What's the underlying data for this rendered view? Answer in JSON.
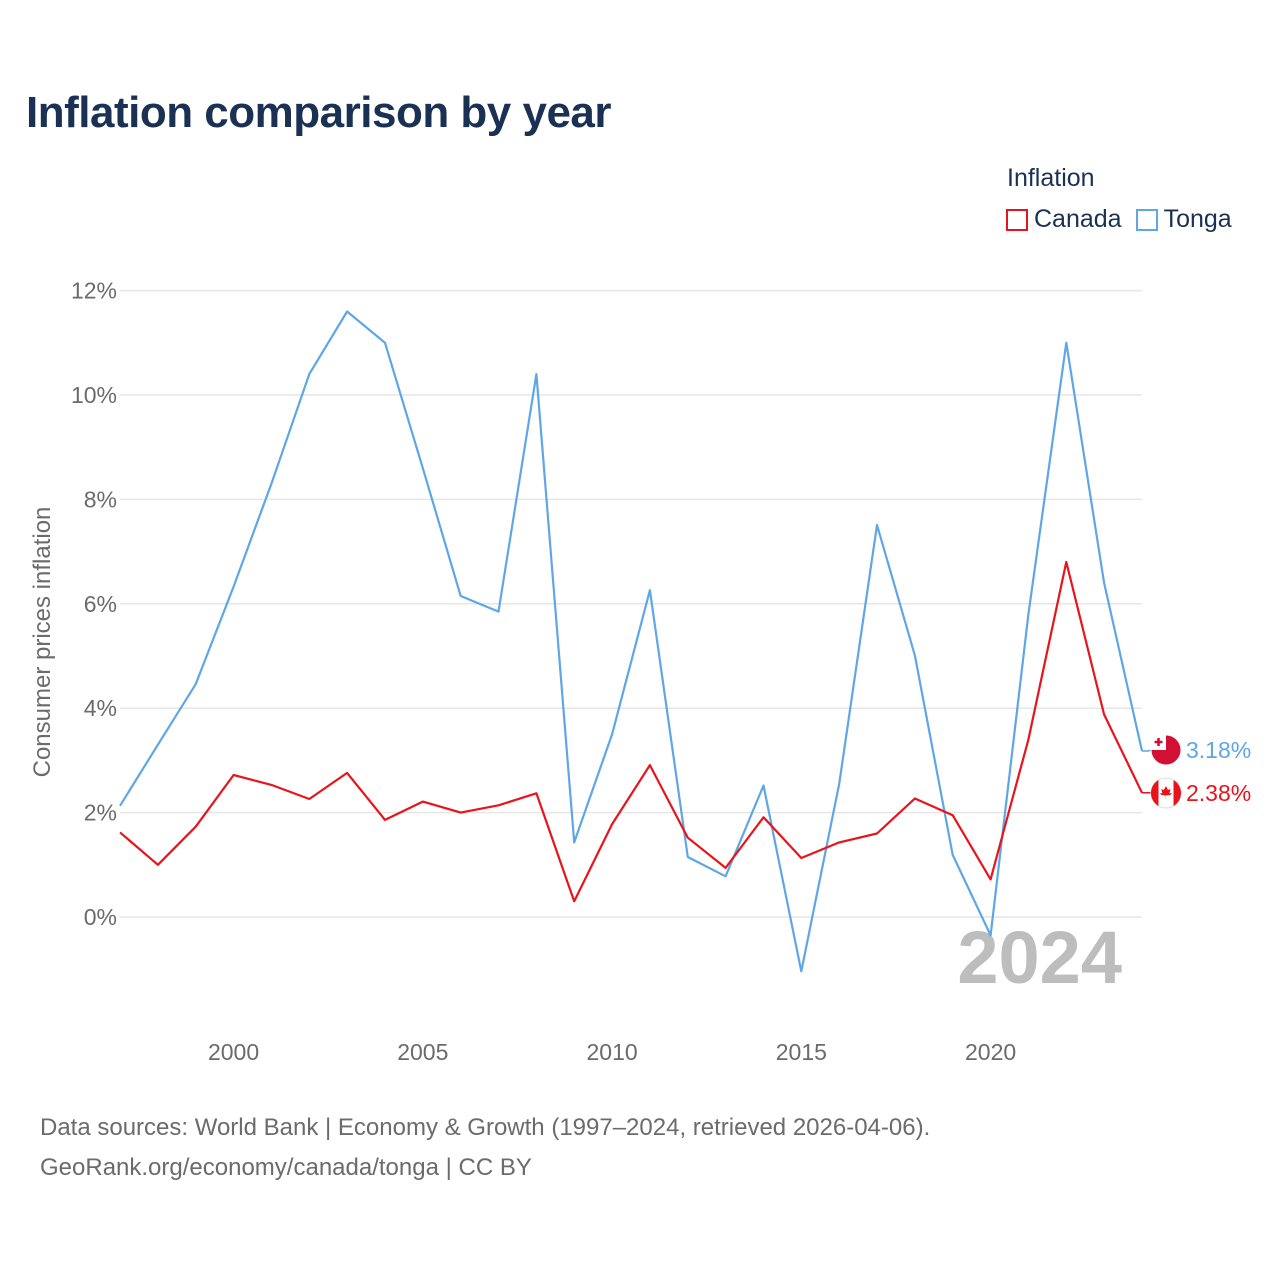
{
  "title": "Inflation comparison by year",
  "legend": {
    "title": "Inflation",
    "items": [
      {
        "name": "Canada",
        "color": "#e8141b"
      },
      {
        "name": "Tonga",
        "color": "#5fa6e6"
      }
    ]
  },
  "source": {
    "line1": "Data sources: World Bank | Economy & Growth (1997–2024, retrieved 2026-04-06).",
    "line2": "GeoRank.org/economy/canada/tonga | CC BY"
  },
  "chart_data": {
    "type": "line",
    "title": "Inflation comparison by year",
    "xlabel": "",
    "ylabel": "Consumer prices inflation",
    "x": [
      1997,
      1998,
      1999,
      2000,
      2001,
      2002,
      2003,
      2004,
      2005,
      2006,
      2007,
      2008,
      2009,
      2010,
      2011,
      2012,
      2013,
      2014,
      2015,
      2016,
      2017,
      2018,
      2019,
      2020,
      2021,
      2022,
      2023,
      2024
    ],
    "xlim": [
      1997,
      2024
    ],
    "ylim": [
      -2,
      12
    ],
    "xticks": [
      2000,
      2005,
      2010,
      2015,
      2020
    ],
    "xtick_labels": [
      "2000",
      "2005",
      "2010",
      "2015",
      "2020"
    ],
    "yticks": [
      0,
      2,
      4,
      6,
      8,
      10,
      12
    ],
    "ytick_labels": [
      "0%",
      "2%",
      "4%",
      "6%",
      "8%",
      "10%",
      "12%"
    ],
    "watermark_year": "2024",
    "series": [
      {
        "name": "Canada",
        "color": "#e8141b",
        "end_label": "2.38%",
        "flag": "canada-flag",
        "values": [
          1.62,
          1.0,
          1.73,
          2.72,
          2.53,
          2.26,
          2.76,
          1.86,
          2.21,
          2.0,
          2.14,
          2.37,
          0.3,
          1.78,
          2.91,
          1.52,
          0.94,
          1.91,
          1.13,
          1.43,
          1.6,
          2.27,
          1.95,
          0.72,
          3.4,
          6.8,
          3.88,
          2.38
        ]
      },
      {
        "name": "Tonga",
        "color": "#5fa6e6",
        "end_label": "3.18%",
        "flag": "tonga-flag",
        "values": [
          2.13,
          3.3,
          4.46,
          6.33,
          8.3,
          10.4,
          11.6,
          11.0,
          8.6,
          6.15,
          5.85,
          10.4,
          1.43,
          3.5,
          6.26,
          1.15,
          0.78,
          2.52,
          -1.04,
          2.55,
          7.51,
          5.01,
          1.19,
          -0.35,
          5.8,
          11.0,
          6.4,
          3.18
        ]
      }
    ]
  }
}
